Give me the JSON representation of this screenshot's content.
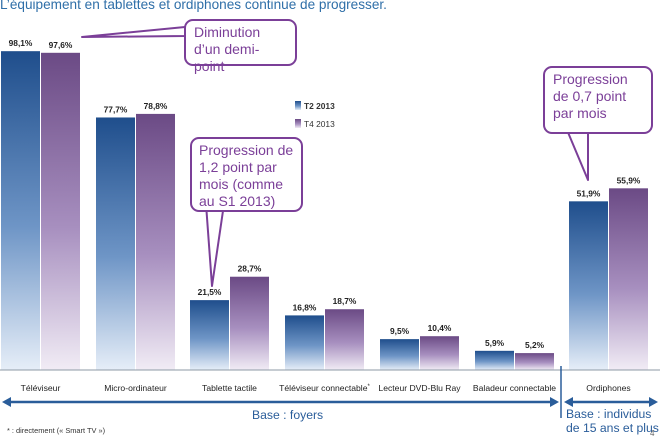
{
  "title": "L’équipement en tablettes et ordiphones continue de progresser.",
  "chart_data": {
    "type": "bar",
    "categories": [
      "Téléviseur",
      "Micro-ordinateur",
      "Tablette tactile",
      "Téléviseur connectable",
      "Lecteur DVD-Blu Ray",
      "Baladeur connectable",
      "Ordiphones"
    ],
    "category_marks": [
      "",
      "",
      "",
      "*",
      "",
      "",
      ""
    ],
    "series": [
      {
        "name": "T2 2013",
        "values": [
          98.1,
          77.7,
          21.5,
          16.8,
          9.5,
          5.9,
          51.9
        ],
        "labels": [
          "98,1%",
          "77,7%",
          "21,5%",
          "16,8%",
          "9,5%",
          "5,9%",
          "51,9%"
        ],
        "color": "#1f4e8c"
      },
      {
        "name": "T4 2013",
        "values": [
          97.6,
          78.8,
          28.7,
          18.7,
          10.4,
          5.2,
          55.9
        ],
        "labels": [
          "97,6%",
          "78,8%",
          "28,7%",
          "18,7%",
          "10,4%",
          "5,2%",
          "55,9%"
        ],
        "color": "#6b4a85"
      }
    ],
    "ylim": [
      0,
      100
    ],
    "grid": false,
    "legend": "center"
  },
  "callouts": [
    {
      "id": "demi-point",
      "text": "Diminution d’un demi-point"
    },
    {
      "id": "tablette",
      "text": "Progression de 1,2 point par mois (comme au S1 2013)"
    },
    {
      "id": "ordiphones",
      "text": "Progression de 0,7 point par mois"
    }
  ],
  "base_foyers": "Base : foyers",
  "base_individus": "Base : individus de 15 ans et plus",
  "footnote": "* : directement (« Smart TV »)",
  "page_number": "4",
  "colors": {
    "accent": "#2f6fa8",
    "callout": "#7b3f98",
    "arrow": "#2a5d9a"
  }
}
